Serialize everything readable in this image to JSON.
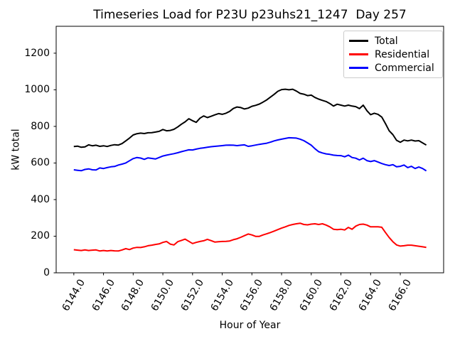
{
  "chart_data": {
    "type": "line",
    "title": "Timeseries Load for P23U p23uhs21_1247  Day 257",
    "xlabel": "Hour of Year",
    "ylabel": "kW total",
    "xlim": [
      6142.81,
      6168.92
    ],
    "ylim": [
      0,
      1347
    ],
    "grid": false,
    "legend_position": "upper right",
    "x_ticks": [
      6144,
      6146,
      6148,
      6150,
      6152,
      6154,
      6156,
      6158,
      6160,
      6162,
      6164,
      6166
    ],
    "x_tick_labels": [
      "6144.0",
      "6146.0",
      "6148.0",
      "6150.0",
      "6152.0",
      "6154.0",
      "6156.0",
      "6158.0",
      "6160.0",
      "6162.0",
      "6164.0",
      "6166.0"
    ],
    "y_ticks": [
      0,
      200,
      400,
      600,
      800,
      1000,
      1200
    ],
    "y_tick_labels": [
      "0",
      "200",
      "400",
      "600",
      "800",
      "1000",
      "1200"
    ],
    "x": [
      6144.0,
      6144.25,
      6144.5,
      6144.75,
      6145.0,
      6145.25,
      6145.5,
      6145.75,
      6146.0,
      6146.25,
      6146.5,
      6146.75,
      6147.0,
      6147.25,
      6147.5,
      6147.75,
      6148.0,
      6148.25,
      6148.5,
      6148.75,
      6149.0,
      6149.25,
      6149.5,
      6149.75,
      6150.0,
      6150.25,
      6150.5,
      6150.75,
      6151.0,
      6151.25,
      6151.5,
      6151.75,
      6152.0,
      6152.25,
      6152.5,
      6152.75,
      6153.0,
      6153.25,
      6153.5,
      6153.75,
      6154.0,
      6154.25,
      6154.5,
      6154.75,
      6155.0,
      6155.25,
      6155.5,
      6155.75,
      6156.0,
      6156.25,
      6156.5,
      6156.75,
      6157.0,
      6157.25,
      6157.5,
      6157.75,
      6158.0,
      6158.25,
      6158.5,
      6158.75,
      6159.0,
      6159.25,
      6159.5,
      6159.75,
      6160.0,
      6160.25,
      6160.5,
      6160.75,
      6161.0,
      6161.25,
      6161.5,
      6161.75,
      6162.0,
      6162.25,
      6162.5,
      6162.75,
      6163.0,
      6163.25,
      6163.5,
      6163.75,
      6164.0,
      6164.25,
      6164.5,
      6164.75,
      6165.0,
      6165.25,
      6165.5,
      6165.75,
      6166.0,
      6166.25,
      6166.5,
      6166.75,
      6167.0,
      6167.25,
      6167.5,
      6167.75
    ],
    "series": [
      {
        "name": "Total",
        "color": "#000000",
        "values": [
          690,
          692,
          686,
          688,
          699,
          694,
          697,
          691,
          694,
          690,
          696,
          700,
          698,
          706,
          721,
          736,
          753,
          760,
          763,
          761,
          765,
          766,
          769,
          773,
          783,
          776,
          778,
          784,
          797,
          812,
          825,
          842,
          831,
          822,
          845,
          857,
          848,
          855,
          863,
          870,
          866,
          872,
          882,
          898,
          906,
          903,
          895,
          900,
          910,
          915,
          922,
          933,
          945,
          960,
          975,
          992,
          1001,
          1003,
          1000,
          1003,
          993,
          980,
          976,
          968,
          971,
          958,
          949,
          942,
          936,
          925,
          911,
          921,
          916,
          911,
          916,
          911,
          908,
          897,
          916,
          886,
          864,
          872,
          866,
          851,
          815,
          776,
          755,
          724,
          713,
          725,
          721,
          725,
          720,
          722,
          710,
          698
        ]
      },
      {
        "name": "Residential",
        "color": "#ff0000",
        "values": [
          126,
          124,
          122,
          125,
          122,
          124,
          125,
          119,
          122,
          119,
          122,
          120,
          119,
          125,
          132,
          127,
          135,
          139,
          138,
          142,
          148,
          151,
          155,
          158,
          166,
          171,
          157,
          152,
          170,
          177,
          184,
          172,
          160,
          166,
          171,
          175,
          183,
          176,
          168,
          170,
          171,
          172,
          174,
          181,
          186,
          194,
          203,
          212,
          207,
          199,
          199,
          207,
          213,
          220,
          228,
          236,
          244,
          251,
          259,
          264,
          268,
          271,
          264,
          262,
          266,
          268,
          264,
          268,
          261,
          251,
          238,
          236,
          238,
          234,
          248,
          238,
          255,
          264,
          266,
          261,
          251,
          251,
          251,
          249,
          220,
          193,
          170,
          152,
          146,
          148,
          151,
          151,
          148,
          145,
          142,
          139
        ]
      },
      {
        "name": "Commercial",
        "color": "#0000ff",
        "values": [
          563,
          560,
          558,
          565,
          568,
          563,
          562,
          573,
          570,
          575,
          579,
          581,
          589,
          594,
          600,
          612,
          624,
          630,
          627,
          620,
          628,
          625,
          622,
          630,
          638,
          643,
          647,
          651,
          656,
          662,
          667,
          672,
          671,
          676,
          680,
          683,
          686,
          689,
          691,
          693,
          695,
          697,
          698,
          697,
          695,
          697,
          699,
          691,
          694,
          698,
          702,
          705,
          708,
          714,
          721,
          726,
          730,
          734,
          738,
          737,
          736,
          730,
          722,
          710,
          697,
          678,
          662,
          655,
          650,
          647,
          643,
          641,
          640,
          634,
          643,
          630,
          626,
          617,
          626,
          613,
          608,
          613,
          605,
          597,
          591,
          586,
          591,
          579,
          582,
          589,
          575,
          582,
          570,
          578,
          570,
          557
        ]
      }
    ]
  }
}
